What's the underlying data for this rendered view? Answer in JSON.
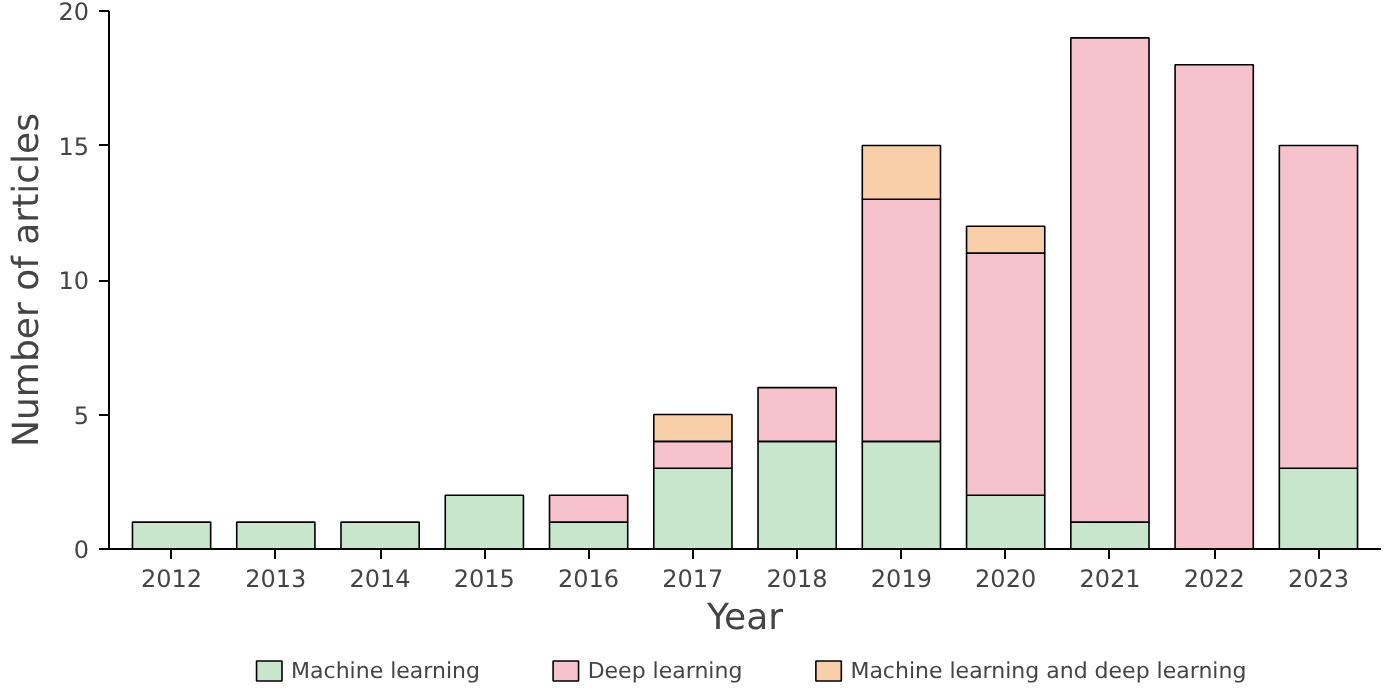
{
  "chart_data": {
    "type": "bar",
    "stacked": true,
    "xlabel": "Year",
    "ylabel": "Number of articles",
    "categories": [
      "2012",
      "2013",
      "2014",
      "2015",
      "2016",
      "2017",
      "2018",
      "2019",
      "2020",
      "2021",
      "2022",
      "2023"
    ],
    "series": [
      {
        "name": "Machine learning",
        "color": "#c8e6cc",
        "values": [
          1,
          1,
          1,
          2,
          1,
          3,
          4,
          4,
          2,
          1,
          null,
          3
        ]
      },
      {
        "name": "Deep learning",
        "color": "#f6c3cd",
        "values": [
          null,
          null,
          null,
          null,
          1,
          1,
          2,
          9,
          9,
          18,
          18,
          12
        ]
      },
      {
        "name": "Machine learning and deep learning",
        "color": "#f8cfa8",
        "values": [
          null,
          null,
          null,
          null,
          null,
          1,
          null,
          2,
          1,
          null,
          null,
          null
        ]
      }
    ],
    "ylim": [
      0,
      20
    ],
    "yticks": [
      0,
      5,
      10,
      15,
      20
    ],
    "grid": false,
    "legend": "bottom"
  }
}
